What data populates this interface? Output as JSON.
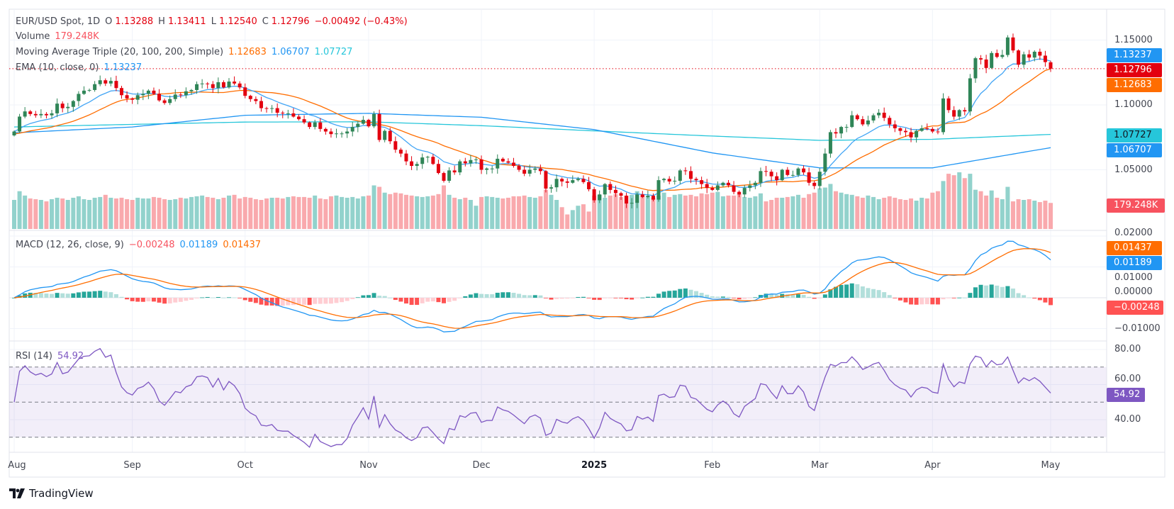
{
  "header": {
    "symbol": "EUR/USD Spot, 1D",
    "open_label": "O",
    "open": "1.13288",
    "high_label": "H",
    "high": "1.13411",
    "low_label": "L",
    "low": "1.12540",
    "close_label": "C",
    "close": "1.12796",
    "change": "−0.00492 (−0.43%)"
  },
  "volume_legend": {
    "label": "Volume",
    "value": "179.248K"
  },
  "ma_legend": {
    "label": "Moving Average Triple (20, 100, 200, Simple)",
    "ma20": "1.12683",
    "ma100": "1.06707",
    "ma200": "1.07727"
  },
  "ema_legend": {
    "label": "EMA (10, close, 0)",
    "value": "1.13237"
  },
  "macd_legend": {
    "label": "MACD (12, 26, close, 9)",
    "hist": "−0.00248",
    "macd": "0.01189",
    "signal": "0.01437"
  },
  "rsi_legend": {
    "label": "RSI (14)",
    "value": "54.92"
  },
  "price_axis": {
    "ticks": [
      "1.15000",
      "1.10000",
      "1.05000"
    ],
    "ema_box": "1.13237",
    "last_box": "1.12796",
    "ma20_box": "1.12683",
    "ma200_box": "1.07727",
    "ma100_box": "1.06707",
    "volume_box": "179.248K"
  },
  "macd_axis": {
    "ticks": [
      "0.02000",
      "0.01000",
      "0.00000",
      "−0.01000"
    ],
    "signal_box": "0.01437",
    "macd_box": "0.01189",
    "hist_box": "−0.00248"
  },
  "rsi_axis": {
    "ticks": [
      "80.00",
      "60.00",
      "40.00"
    ],
    "value_box": "54.92"
  },
  "branding": {
    "logo_text": "TradingView"
  },
  "colors": {
    "up": "#2f8557",
    "down": "#e3000f",
    "vol_up": "#92d2cc",
    "vol_down": "#f9a9ad",
    "ma20": "#ff6d00",
    "ma100": "#2196f3",
    "ma200": "#26c6da",
    "ema10": "#42a5f5",
    "macd": "#2196f3",
    "signal": "#ff6d00",
    "hist_up": "#26a69a",
    "hist_up_fade": "#b2dfdb",
    "hist_down": "#ff5252",
    "hist_down_fade": "#ffcdd2",
    "rsi": "#7e57c2"
  },
  "chart_data": {
    "type": "candlestick",
    "symbol": "EUR/USD Spot",
    "interval": "1D",
    "price_range": [
      1.022,
      1.174
    ],
    "last_candle": {
      "open": 1.13288,
      "high": 1.13411,
      "low": 1.1254,
      "close": 1.12796
    },
    "macd_range": [
      -0.0125,
      0.0205
    ],
    "rsi_range": [
      20,
      85
    ],
    "rsi_bands": [
      30,
      50,
      70
    ],
    "grid": true,
    "months": [
      {
        "label": "Aug",
        "closes": [
          1.0795,
          1.091,
          1.095,
          1.093,
          1.092,
          1.093,
          1.092,
          1.0935,
          1.101,
          1.0975,
          1.0985,
          1.103,
          1.1085,
          1.111,
          1.1115,
          1.116,
          1.119,
          1.1165,
          1.1185,
          1.113,
          1.1075,
          1.105
        ],
        "volumes": [
          200,
          260,
          230,
          210,
          205,
          200,
          190,
          205,
          215,
          210,
          200,
          215,
          225,
          205,
          200,
          215,
          220,
          235,
          215,
          210,
          215,
          205
        ],
        "sma100": 1.0785,
        "sma200": 1.083
      },
      {
        "label": "Sep",
        "closes": [
          1.104,
          1.1075,
          1.1085,
          1.111,
          1.1085,
          1.1035,
          1.1015,
          1.1045,
          1.108,
          1.1075,
          1.1105,
          1.1115,
          1.116,
          1.1165,
          1.116,
          1.113,
          1.1175,
          1.1135,
          1.118,
          1.1165,
          1.1135
        ],
        "volumes": [
          200,
          215,
          210,
          210,
          220,
          215,
          205,
          200,
          205,
          215,
          210,
          220,
          225,
          230,
          220,
          215,
          205,
          215,
          230,
          235,
          210
        ],
        "sma100": 1.083,
        "sma200": 1.085
      },
      {
        "label": "Oct",
        "closes": [
          1.107,
          1.1045,
          1.103,
          1.0975,
          1.097,
          1.0975,
          1.094,
          1.0935,
          1.0935,
          1.091,
          1.089,
          1.0865,
          1.083,
          1.0865,
          1.0815,
          1.0795,
          1.0775,
          1.078,
          1.078,
          1.0795,
          1.083,
          1.0855,
          1.0885
        ],
        "volumes": [
          220,
          215,
          205,
          200,
          210,
          215,
          215,
          210,
          220,
          225,
          220,
          220,
          215,
          230,
          210,
          205,
          225,
          230,
          220,
          215,
          220,
          210,
          225
        ],
        "sma100": 1.092,
        "sma200": 1.0868
      },
      {
        "label": "Nov",
        "closes": [
          1.0835,
          1.093,
          1.073,
          1.08,
          1.072,
          1.0655,
          1.0625,
          1.0565,
          1.053,
          1.0545,
          1.0595,
          1.06,
          1.0545,
          1.0475,
          1.0415,
          1.0495,
          1.048,
          1.0565,
          1.055,
          1.0575,
          1.058
        ],
        "volumes": [
          230,
          300,
          290,
          250,
          240,
          250,
          245,
          235,
          230,
          225,
          220,
          225,
          230,
          240,
          300,
          235,
          215,
          205,
          215,
          200,
          160
        ],
        "sma100": 1.0935,
        "sma200": 1.087
      },
      {
        "label": "Dec",
        "closes": [
          1.05,
          1.051,
          1.051,
          1.0585,
          1.0565,
          1.0555,
          1.053,
          1.05,
          1.047,
          1.05,
          1.051,
          1.049,
          1.0355,
          1.0365,
          1.043,
          1.041,
          1.04,
          1.042,
          1.043,
          1.0405,
          1.035
        ],
        "volumes": [
          220,
          225,
          220,
          215,
          210,
          215,
          225,
          225,
          230,
          220,
          215,
          225,
          270,
          235,
          200,
          150,
          100,
          130,
          160,
          170,
          120
        ],
        "sma100": 1.0905,
        "sma200": 1.084
      },
      {
        "label": "2025",
        "closes": [
          1.0265,
          1.031,
          1.039,
          1.0345,
          1.032,
          1.03,
          1.024,
          1.0245,
          1.031,
          1.029,
          1.03,
          1.027,
          1.042,
          1.043,
          1.041,
          1.0415,
          1.0495,
          1.049,
          1.043,
          1.042,
          1.039,
          1.036
        ],
        "volumes": [
          230,
          235,
          215,
          230,
          240,
          220,
          230,
          235,
          260,
          240,
          225,
          215,
          230,
          250,
          220,
          235,
          240,
          230,
          235,
          225,
          245,
          240
        ],
        "sma100": 1.081,
        "sma200": 1.08
      },
      {
        "label": "Feb",
        "closes": [
          1.0345,
          1.038,
          1.04,
          1.038,
          1.033,
          1.031,
          1.036,
          1.038,
          1.04,
          1.049,
          1.0485,
          1.045,
          1.042,
          1.05,
          1.046,
          1.046,
          1.051,
          1.048,
          1.04,
          1.0375
        ],
        "volumes": [
          250,
          255,
          225,
          230,
          230,
          240,
          220,
          215,
          225,
          245,
          190,
          200,
          215,
          215,
          220,
          225,
          235,
          215,
          240,
          250
        ],
        "sma100": 1.063,
        "sma200": 1.076
      },
      {
        "label": "Mar",
        "closes": [
          1.0485,
          1.0625,
          1.079,
          1.078,
          1.083,
          1.083,
          1.092,
          1.089,
          1.085,
          1.088,
          1.092,
          1.094,
          1.09,
          1.085,
          1.082,
          1.08,
          1.079,
          1.075,
          1.08,
          1.082,
          1.0815
        ],
        "volumes": [
          280,
          285,
          310,
          260,
          250,
          240,
          235,
          225,
          215,
          230,
          220,
          205,
          215,
          225,
          215,
          205,
          200,
          210,
          195,
          215,
          210
        ],
        "sma100": 1.0515,
        "sma200": 1.0727
      },
      {
        "label": "Apr",
        "closes": [
          1.0795,
          1.079,
          1.105,
          1.096,
          1.091,
          1.096,
          1.095,
          1.1205,
          1.136,
          1.135,
          1.1285,
          1.14,
          1.137,
          1.1385,
          1.152,
          1.142,
          1.131,
          1.139,
          1.1365,
          1.141,
          1.138,
          1.133
        ],
        "volumes": [
          250,
          260,
          330,
          380,
          370,
          390,
          350,
          380,
          270,
          260,
          230,
          265,
          215,
          205,
          290,
          190,
          205,
          200,
          205,
          195,
          185,
          195
        ],
        "sma100": 1.0515,
        "sma200": 1.0735
      },
      {
        "label": "May",
        "closes": [
          1.12796
        ],
        "volumes": [
          179.248
        ],
        "sma100": 1.06707,
        "sma200": 1.07727
      }
    ]
  }
}
